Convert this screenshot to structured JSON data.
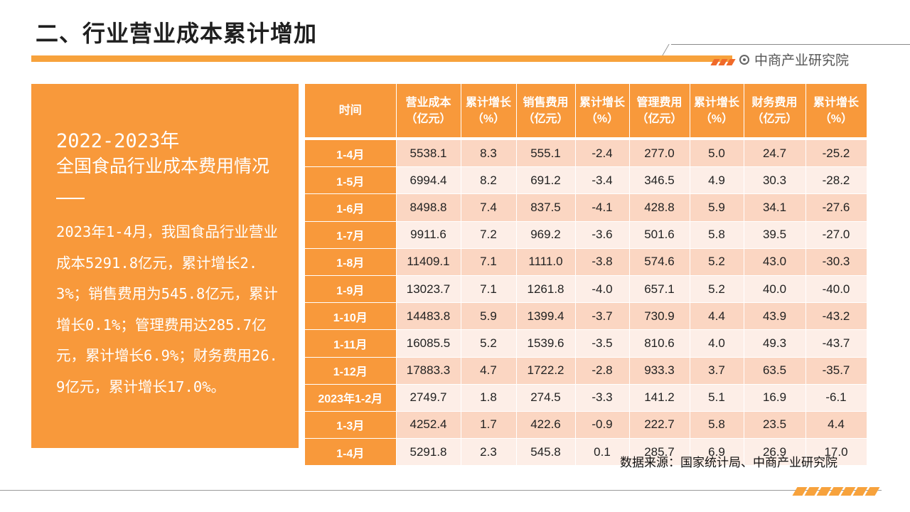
{
  "page": {
    "title": "二、行业营业成本累计增加",
    "brand": "中商产业研究院",
    "source": "数据来源：国家统计局、中商产业研究院"
  },
  "side": {
    "years": "2022-2023年",
    "subtitle": "全国食品行业成本费用情况",
    "body": "2023年1-4月，我国食品行业营业成本5291.8亿元，累计增长2.3%；销售费用为545.8亿元，累计增长0.1%；管理费用达285.7亿元，累计增长6.9%；财务费用26.9亿元，累计增长17.0%。"
  },
  "table": {
    "headers": [
      "时间",
      "营业成本（亿元）",
      "累计增长（%）",
      "销售费用（亿元）",
      "累计增长（%）",
      "管理费用（亿元）",
      "累计增长（%）",
      "财务费用（亿元）",
      "累计增长（%）"
    ],
    "rows": [
      [
        "1-4月",
        "5538.1",
        "8.3",
        "555.1",
        "-2.4",
        "277.0",
        "5.0",
        "24.7",
        "-25.2"
      ],
      [
        "1-5月",
        "6994.4",
        "8.2",
        "691.2",
        "-3.4",
        "346.5",
        "4.9",
        "30.3",
        "-28.2"
      ],
      [
        "1-6月",
        "8498.8",
        "7.4",
        "837.5",
        "-4.1",
        "428.8",
        "5.9",
        "34.1",
        "-27.6"
      ],
      [
        "1-7月",
        "9911.6",
        "7.2",
        "969.2",
        "-3.6",
        "501.6",
        "5.8",
        "39.5",
        "-27.0"
      ],
      [
        "1-8月",
        "11409.1",
        "7.1",
        "1111.0",
        "-3.8",
        "574.6",
        "5.2",
        "43.0",
        "-30.3"
      ],
      [
        "1-9月",
        "13023.7",
        "7.1",
        "1261.8",
        "-4.0",
        "657.1",
        "5.2",
        "40.0",
        "-40.0"
      ],
      [
        "1-10月",
        "14483.8",
        "5.9",
        "1399.4",
        "-3.7",
        "730.9",
        "4.4",
        "43.9",
        "-43.2"
      ],
      [
        "1-11月",
        "16085.5",
        "5.2",
        "1539.6",
        "-3.5",
        "810.6",
        "4.0",
        "49.3",
        "-43.7"
      ],
      [
        "1-12月",
        "17883.3",
        "4.7",
        "1722.2",
        "-2.8",
        "933.3",
        "3.7",
        "63.5",
        "-35.7"
      ],
      [
        "2023年1-2月",
        "2749.7",
        "1.8",
        "274.5",
        "-3.3",
        "141.2",
        "5.1",
        "16.9",
        "-6.1"
      ],
      [
        "1-3月",
        "4252.4",
        "1.7",
        "422.6",
        "-0.9",
        "222.7",
        "5.8",
        "23.5",
        "4.4"
      ],
      [
        "1-4月",
        "5291.8",
        "2.3",
        "545.8",
        "0.1",
        "285.7",
        "6.9",
        "26.9",
        "17.0"
      ]
    ]
  },
  "colors": {
    "accent": "#f8993b",
    "row_odd": "#fbd6c2",
    "row_even": "#fdeee7"
  }
}
